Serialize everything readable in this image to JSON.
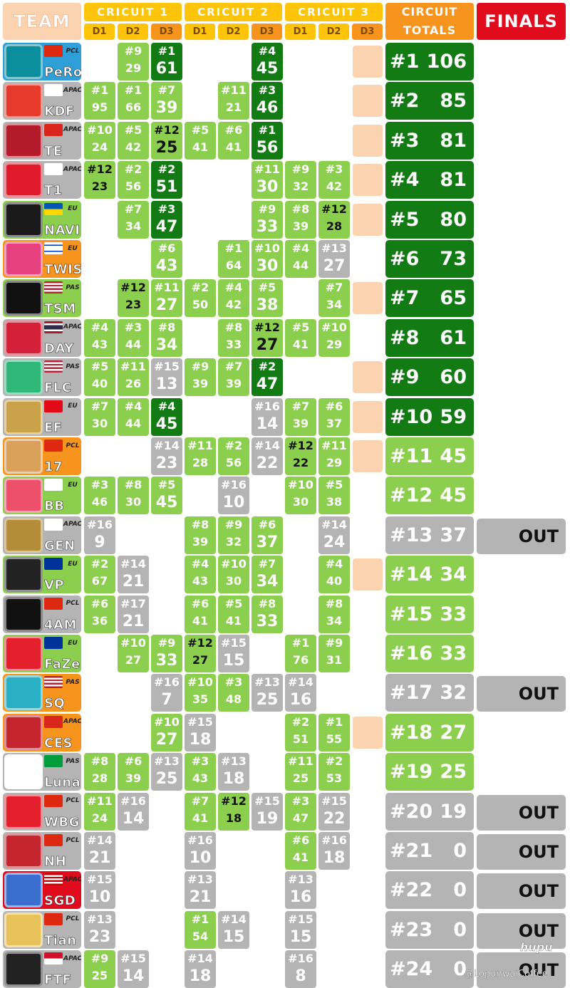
{
  "header": {
    "team": "TEAM",
    "circuits": [
      "CRICUIT 1",
      "CRICUIT 2",
      "CRICUIT 3"
    ],
    "days": [
      "D1",
      "D2",
      "D3"
    ],
    "totals_line1": "CIRCUIT",
    "totals_line2": "TOTALS",
    "finals": "FINALS"
  },
  "teams": [
    {
      "name": "PeRo",
      "region": "PCL",
      "tb": "#2f9fd8",
      "tc": "#0b8e9e",
      "flag": "CN",
      "cells": [
        null,
        [
          "#9",
          "29"
        ],
        [
          "#1",
          "61"
        ],
        null,
        null,
        [
          "#4",
          "45"
        ],
        null,
        null,
        "peach"
      ],
      "total_rank": "#1",
      "total_points": "106",
      "finals": ""
    },
    {
      "name": "KDF",
      "region": "APAC",
      "tb": "#b4b4b4",
      "tc": "#e53a2c",
      "flag": "KR",
      "cells": [
        [
          "#1",
          "95"
        ],
        [
          "#1",
          "66"
        ],
        [
          "#7",
          "39"
        ],
        null,
        [
          "#11",
          "21"
        ],
        [
          "#3",
          "46"
        ],
        null,
        null,
        "peach"
      ],
      "total_rank": "#2",
      "total_points": "85",
      "finals": ""
    },
    {
      "name": "TE",
      "region": "APAC",
      "tb": "#b4b4b4",
      "tc": "#b31b2a",
      "flag": "VN",
      "cells": [
        [
          "#10",
          "24"
        ],
        [
          "#5",
          "42"
        ],
        [
          "#12",
          "25"
        ],
        [
          "#5",
          "41"
        ],
        [
          "#6",
          "41"
        ],
        [
          "#1",
          "56"
        ],
        null,
        null,
        "peach"
      ],
      "total_rank": "#3",
      "total_points": "81",
      "finals": ""
    },
    {
      "name": "T1",
      "region": "APAC",
      "tb": "#b4b4b4",
      "tc": "#e11b2c",
      "flag": "KR",
      "cells": [
        [
          "#12",
          "23"
        ],
        [
          "#2",
          "56"
        ],
        [
          "#2",
          "51"
        ],
        null,
        null,
        [
          "#11",
          "30"
        ],
        [
          "#9",
          "32"
        ],
        [
          "#3",
          "42"
        ],
        "peach"
      ],
      "total_rank": "#4",
      "total_points": "81",
      "finals": ""
    },
    {
      "name": "NAVI",
      "region": "EU",
      "tb": "#8ccf4e",
      "tc": "#1a1a1a",
      "flag": "UA",
      "cells": [
        null,
        [
          "#7",
          "34"
        ],
        [
          "#3",
          "47"
        ],
        null,
        null,
        [
          "#9",
          "33"
        ],
        [
          "#8",
          "39"
        ],
        [
          "#12",
          "28"
        ],
        "peach"
      ],
      "total_rank": "#5",
      "total_points": "80",
      "finals": ""
    },
    {
      "name": "TWIS",
      "region": "EU",
      "tb": "#f7941d",
      "tc": "#e8417f",
      "flag": "IL",
      "cells": [
        null,
        null,
        [
          "#6",
          "43"
        ],
        null,
        [
          "#1",
          "64"
        ],
        [
          "#10",
          "30"
        ],
        [
          "#4",
          "44"
        ],
        [
          "#13",
          "27"
        ],
        null
      ],
      "total_rank": "#6",
      "total_points": "73",
      "finals": ""
    },
    {
      "name": "TSM",
      "region": "PAS",
      "tb": "#8ccf4e",
      "tc": "#111111",
      "flag": "US",
      "cells": [
        null,
        [
          "#12",
          "23"
        ],
        [
          "#11",
          "27"
        ],
        [
          "#2",
          "50"
        ],
        [
          "#4",
          "42"
        ],
        [
          "#5",
          "38"
        ],
        null,
        [
          "#7",
          "34"
        ],
        "peach"
      ],
      "total_rank": "#7",
      "total_points": "65",
      "finals": ""
    },
    {
      "name": "DAY",
      "region": "APAC",
      "tb": "#b4b4b4",
      "tc": "#d5203a",
      "flag": "TH",
      "cells": [
        [
          "#4",
          "43"
        ],
        [
          "#3",
          "44"
        ],
        [
          "#8",
          "34"
        ],
        null,
        [
          "#8",
          "33"
        ],
        [
          "#12",
          "27"
        ],
        [
          "#5",
          "41"
        ],
        [
          "#10",
          "29"
        ],
        null
      ],
      "total_rank": "#8",
      "total_points": "61",
      "finals": ""
    },
    {
      "name": "FLC",
      "region": "PAS",
      "tb": "#b4b4b4",
      "tc": "#2fb87a",
      "flag": "US",
      "cells": [
        [
          "#5",
          "40"
        ],
        [
          "#11",
          "26"
        ],
        [
          "#15",
          "13"
        ],
        [
          "#9",
          "39"
        ],
        [
          "#7",
          "39"
        ],
        [
          "#2",
          "47"
        ],
        null,
        null,
        "peach"
      ],
      "total_rank": "#9",
      "total_points": "60",
      "finals": ""
    },
    {
      "name": "EF",
      "region": "EU",
      "tb": "#b4b4b4",
      "tc": "#c9a24a",
      "flag": "TR",
      "cells": [
        [
          "#7",
          "30"
        ],
        [
          "#4",
          "44"
        ],
        [
          "#4",
          "45"
        ],
        null,
        null,
        [
          "#16",
          "14"
        ],
        [
          "#7",
          "39"
        ],
        [
          "#6",
          "37"
        ],
        "peach"
      ],
      "total_rank": "#10",
      "total_points": "59",
      "finals": ""
    },
    {
      "name": "17",
      "region": "PCL",
      "tb": "#f7941d",
      "tc": "#d9a15a",
      "flag": "CN",
      "cells": [
        null,
        null,
        [
          "#14",
          "23"
        ],
        [
          "#11",
          "28"
        ],
        [
          "#2",
          "56"
        ],
        [
          "#14",
          "22"
        ],
        [
          "#12",
          "22"
        ],
        [
          "#11",
          "29"
        ],
        "peach"
      ],
      "total_rank": "#11",
      "total_points": "45",
      "finals": ""
    },
    {
      "name": "BB",
      "region": "EU",
      "tb": "#8ccf4e",
      "tc": "#ee4f6a",
      "flag": "FI",
      "cells": [
        [
          "#3",
          "46"
        ],
        [
          "#8",
          "30"
        ],
        [
          "#5",
          "45"
        ],
        null,
        [
          "#16",
          "10"
        ],
        null,
        [
          "#10",
          "30"
        ],
        [
          "#5",
          "38"
        ],
        null
      ],
      "total_rank": "#12",
      "total_points": "45",
      "finals": ""
    },
    {
      "name": "GEN",
      "region": "APAC",
      "tb": "#b4b4b4",
      "tc": "#b48d3a",
      "flag": "KR",
      "cells": [
        [
          "#16",
          "9"
        ],
        null,
        null,
        [
          "#8",
          "39"
        ],
        [
          "#9",
          "32"
        ],
        [
          "#6",
          "37"
        ],
        null,
        [
          "#14",
          "24"
        ],
        null
      ],
      "total_rank": "#13",
      "total_points": "37",
      "finals": "OUT"
    },
    {
      "name": "VP",
      "region": "EU",
      "tb": "#8ccf4e",
      "tc": "#222222",
      "flag": "EU",
      "cells": [
        [
          "#2",
          "67"
        ],
        [
          "#14",
          "21"
        ],
        null,
        [
          "#4",
          "43"
        ],
        [
          "#10",
          "30"
        ],
        [
          "#7",
          "34"
        ],
        null,
        [
          "#4",
          "40"
        ],
        "peach"
      ],
      "total_rank": "#14",
      "total_points": "34",
      "finals": ""
    },
    {
      "name": "4AM",
      "region": "PCL",
      "tb": "#b4b4b4",
      "tc": "#111111",
      "flag": "CN",
      "cells": [
        [
          "#6",
          "36"
        ],
        [
          "#17",
          "21"
        ],
        null,
        [
          "#6",
          "41"
        ],
        [
          "#5",
          "41"
        ],
        [
          "#8",
          "33"
        ],
        null,
        [
          "#8",
          "34"
        ],
        null
      ],
      "total_rank": "#15",
      "total_points": "33",
      "finals": ""
    },
    {
      "name": "FaZe",
      "region": "EU",
      "tb": "#8ccf4e",
      "tc": "#e4202e",
      "flag": "EU",
      "cells": [
        null,
        [
          "#10",
          "27"
        ],
        [
          "#9",
          "33"
        ],
        [
          "#12",
          "27"
        ],
        [
          "#15",
          "15"
        ],
        null,
        [
          "#1",
          "76"
        ],
        [
          "#9",
          "31"
        ],
        null
      ],
      "total_rank": "#16",
      "total_points": "33",
      "finals": ""
    },
    {
      "name": "SQ",
      "region": "PAS",
      "tb": "#f7941d",
      "tc": "#2ab0c4",
      "flag": "US",
      "cells": [
        null,
        null,
        [
          "#16",
          "7"
        ],
        [
          "#10",
          "35"
        ],
        [
          "#3",
          "48"
        ],
        [
          "#13",
          "25"
        ],
        [
          "#14",
          "16"
        ],
        null,
        null
      ],
      "total_rank": "#17",
      "total_points": "32",
      "finals": "OUT"
    },
    {
      "name": "CES",
      "region": "APAC",
      "tb": "#f7941d",
      "tc": "#c4252e",
      "flag": "VN",
      "cells": [
        null,
        null,
        [
          "#10",
          "27"
        ],
        [
          "#15",
          "18"
        ],
        null,
        null,
        [
          "#2",
          "51"
        ],
        [
          "#1",
          "55"
        ],
        "peach"
      ],
      "total_rank": "#18",
      "total_points": "27",
      "finals": ""
    },
    {
      "name": "Luna",
      "region": "PAS",
      "tb": "#b4b4b4",
      "tc": "#ffffff",
      "flag": "BR",
      "cells": [
        [
          "#8",
          "28"
        ],
        [
          "#6",
          "39"
        ],
        [
          "#13",
          "25"
        ],
        [
          "#3",
          "43"
        ],
        [
          "#13",
          "18"
        ],
        null,
        [
          "#11",
          "25"
        ],
        [
          "#2",
          "53"
        ],
        null
      ],
      "total_rank": "#19",
      "total_points": "25",
      "finals": ""
    },
    {
      "name": "WBG",
      "region": "PCL",
      "tb": "#b4b4b4",
      "tc": "#e4202e",
      "flag": "CN",
      "cells": [
        [
          "#11",
          "24"
        ],
        [
          "#16",
          "14"
        ],
        null,
        [
          "#7",
          "41"
        ],
        [
          "#12",
          "18"
        ],
        [
          "#15",
          "19"
        ],
        [
          "#3",
          "47"
        ],
        [
          "#15",
          "22"
        ],
        null
      ],
      "total_rank": "#20",
      "total_points": "19",
      "finals": "OUT"
    },
    {
      "name": "NH",
      "region": "PCL",
      "tb": "#b4b4b4",
      "tc": "#c4252e",
      "flag": "CN",
      "cells": [
        [
          "#14",
          "21"
        ],
        null,
        null,
        [
          "#16",
          "10"
        ],
        null,
        null,
        [
          "#6",
          "41"
        ],
        [
          "#16",
          "18"
        ],
        null
      ],
      "total_rank": "#21",
      "total_points": "0",
      "finals": "OUT"
    },
    {
      "name": "SGD",
      "region": "APAC",
      "tb": "#e00b1c",
      "tc": "#3a6fcf",
      "flag": "MY",
      "cells": [
        [
          "#15",
          "10"
        ],
        null,
        null,
        [
          "#13",
          "21"
        ],
        null,
        null,
        [
          "#13",
          "16"
        ],
        null,
        null
      ],
      "total_rank": "#22",
      "total_points": "0",
      "finals": "OUT"
    },
    {
      "name": "Tian",
      "region": "PCL",
      "tb": "#b4b4b4",
      "tc": "#e8c25a",
      "flag": "CN",
      "cells": [
        [
          "#13",
          "23"
        ],
        null,
        null,
        [
          "#1",
          "54"
        ],
        [
          "#14",
          "15"
        ],
        null,
        [
          "#15",
          "15"
        ],
        null,
        null
      ],
      "total_rank": "#23",
      "total_points": "0",
      "finals": "OUT"
    },
    {
      "name": "FTF",
      "region": "APAC",
      "tb": "#b4b4b4",
      "tc": "#222222",
      "flag": "ID",
      "cells": [
        [
          "#9",
          "25"
        ],
        [
          "#15",
          "14"
        ],
        null,
        [
          "#14",
          "18"
        ],
        null,
        null,
        [
          "#16",
          "8"
        ],
        null,
        null
      ],
      "total_rank": "#24",
      "total_points": "0",
      "finals": "OUT"
    }
  ],
  "watermark": {
    "brand": "hupu",
    "author": "@LopunwaiCoffee"
  }
}
